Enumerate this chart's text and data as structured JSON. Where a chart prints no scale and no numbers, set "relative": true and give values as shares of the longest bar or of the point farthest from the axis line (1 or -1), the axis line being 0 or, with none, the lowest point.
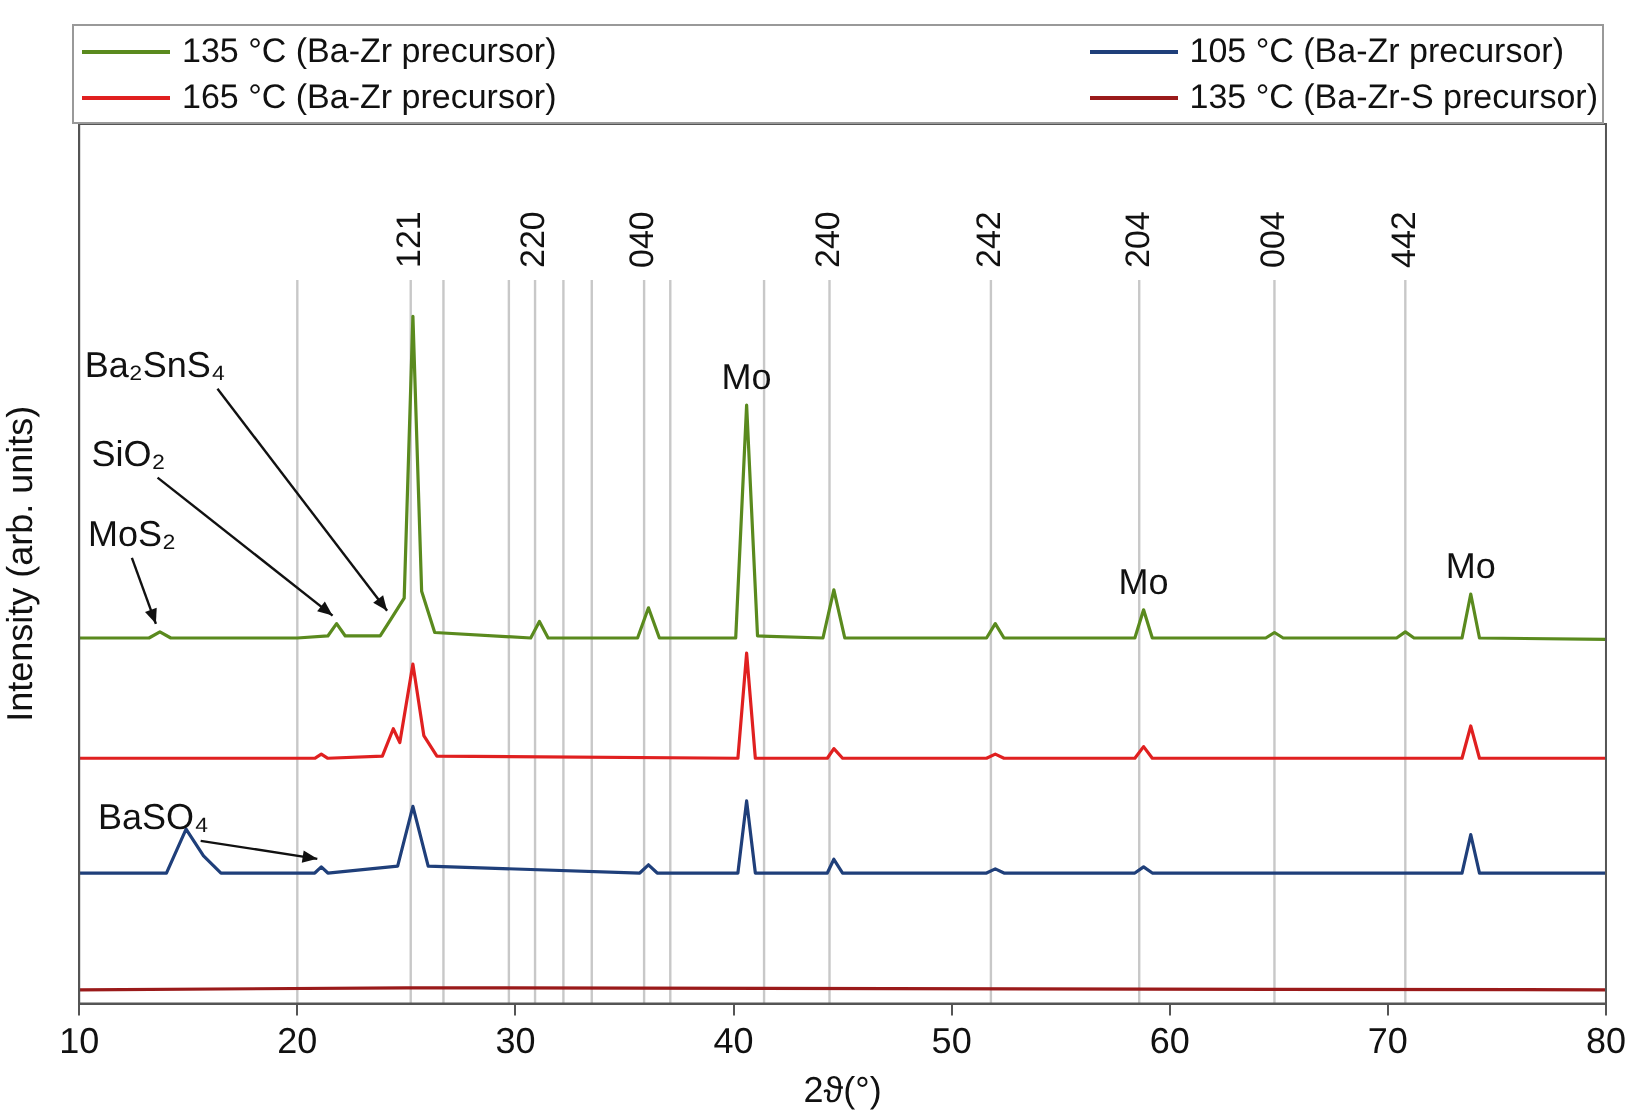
{
  "chart_data": {
    "type": "line",
    "relative": true,
    "xlabel": "2ϑ(°)",
    "ylabel": "Intensity (arb. units)",
    "xlim": [
      10,
      80
    ],
    "xticks": [
      10,
      20,
      30,
      40,
      50,
      60,
      70,
      80
    ],
    "legend": "top",
    "marker": "none",
    "line_style": "solid",
    "series": [
      {
        "name": "135 °C (Ba-Zr precursor)",
        "color": "#5a8a1e",
        "x": [
          10,
          13.2,
          13.7,
          14.2,
          20,
          21.4,
          21.8,
          22.2,
          23.8,
          24.3,
          24.9,
          25.3,
          25.7,
          26.3,
          30.7,
          31.1,
          31.5,
          35.6,
          36.1,
          36.6,
          40.1,
          40.6,
          41.1,
          44.1,
          44.6,
          45.1,
          51.6,
          52.0,
          52.4,
          58.4,
          58.8,
          59.2,
          64.4,
          64.8,
          65.2,
          70.4,
          70.8,
          71.2,
          73.4,
          73.8,
          74.2,
          80
        ],
        "values": [
          0.532,
          0.532,
          0.541,
          0.532,
          0.532,
          0.535,
          0.553,
          0.535,
          0.535,
          0.56,
          0.59,
          1.0,
          0.6,
          0.54,
          0.532,
          0.556,
          0.532,
          0.532,
          0.576,
          0.532,
          0.532,
          0.871,
          0.535,
          0.532,
          0.602,
          0.532,
          0.532,
          0.553,
          0.532,
          0.532,
          0.573,
          0.532,
          0.532,
          0.54,
          0.532,
          0.532,
          0.541,
          0.532,
          0.532,
          0.596,
          0.532,
          0.53
        ]
      },
      {
        "name": "165 °C (Ba-Zr precursor)",
        "color": "#e02020",
        "x": [
          10,
          20.8,
          21.1,
          21.4,
          23.9,
          24.4,
          24.7,
          25.3,
          25.8,
          26.4,
          40.2,
          40.6,
          41.0,
          44.3,
          44.6,
          45.0,
          51.6,
          52.0,
          52.4,
          58.4,
          58.8,
          59.2,
          73.4,
          73.8,
          74.2,
          80
        ],
        "values": [
          0.357,
          0.357,
          0.363,
          0.357,
          0.36,
          0.4,
          0.38,
          0.494,
          0.39,
          0.36,
          0.357,
          0.51,
          0.357,
          0.357,
          0.371,
          0.357,
          0.357,
          0.363,
          0.357,
          0.357,
          0.374,
          0.357,
          0.357,
          0.404,
          0.357,
          0.357
        ]
      },
      {
        "name": "105 °C (Ba-Zr precursor)",
        "color": "#1f3f7a",
        "x": [
          10,
          14.0,
          14.9,
          15.7,
          16.5,
          20.8,
          21.1,
          21.4,
          24.6,
          25.3,
          26.0,
          35.7,
          36.1,
          36.5,
          40.2,
          40.6,
          41.0,
          44.3,
          44.6,
          45.0,
          51.6,
          52.0,
          52.4,
          58.4,
          58.8,
          59.2,
          73.4,
          73.8,
          74.2,
          80
        ],
        "values": [
          0.19,
          0.19,
          0.254,
          0.215,
          0.19,
          0.19,
          0.199,
          0.19,
          0.2,
          0.287,
          0.2,
          0.19,
          0.202,
          0.19,
          0.19,
          0.295,
          0.19,
          0.19,
          0.21,
          0.19,
          0.19,
          0.196,
          0.19,
          0.19,
          0.199,
          0.19,
          0.19,
          0.246,
          0.19,
          0.19
        ]
      },
      {
        "name": "135 °C (Ba-Zr-S precursor)",
        "color": "#9a1a1a",
        "x": [
          10,
          25,
          80
        ],
        "values": [
          0.02,
          0.023,
          0.02
        ]
      }
    ],
    "annotations": [
      {
        "text": "Ba₂SnS₄",
        "x": 24.3,
        "y": 0.56
      },
      {
        "text": "SiO₂",
        "x": 21.8,
        "y": 0.553
      },
      {
        "text": "MoS₂",
        "x": 13.7,
        "y": 0.541
      },
      {
        "text": "BaSO₄",
        "x": 21.1,
        "y": 0.199
      },
      {
        "text": "Mo",
        "x": 40.6,
        "y": 0.871
      },
      {
        "text": "Mo",
        "x": 58.8,
        "y": 0.573
      },
      {
        "text": "Mo",
        "x": 73.8,
        "y": 0.596
      },
      "121",
      "220",
      "040",
      "240",
      "242",
      "204",
      "004",
      "442"
    ],
    "ref_lines": [
      {
        "axis": "x",
        "value": 20,
        "label": null,
        "color": "#c8c8c8"
      },
      {
        "axis": "x",
        "value": 25.2,
        "label": null,
        "color": "#c8c8c8"
      },
      {
        "axis": "x",
        "value": 26.7,
        "label": null,
        "color": "#c8c8c8"
      },
      {
        "axis": "x",
        "value": 29.7,
        "label": null,
        "color": "#c8c8c8"
      },
      {
        "axis": "x",
        "value": 30.9,
        "label": null,
        "color": "#c8c8c8"
      },
      {
        "axis": "x",
        "value": 32.2,
        "label": null,
        "color": "#c8c8c8"
      },
      {
        "axis": "x",
        "value": 33.5,
        "label": null,
        "color": "#c8c8c8"
      },
      {
        "axis": "x",
        "value": 35.9,
        "label": null,
        "color": "#c8c8c8"
      },
      {
        "axis": "x",
        "value": 37.1,
        "label": null,
        "color": "#c8c8c8"
      },
      {
        "axis": "x",
        "value": 41.4,
        "label": null,
        "color": "#c8c8c8"
      },
      {
        "axis": "x",
        "value": 44.4,
        "label": null,
        "color": "#c8c8c8"
      },
      {
        "axis": "x",
        "value": 51.8,
        "label": null,
        "color": "#c8c8c8"
      },
      {
        "axis": "x",
        "value": 58.6,
        "label": null,
        "color": "#c8c8c8"
      },
      {
        "axis": "x",
        "value": 64.8,
        "label": null,
        "color": "#c8c8c8"
      },
      {
        "axis": "x",
        "value": 70.8,
        "label": null,
        "color": "#c8c8c8"
      }
    ]
  }
}
